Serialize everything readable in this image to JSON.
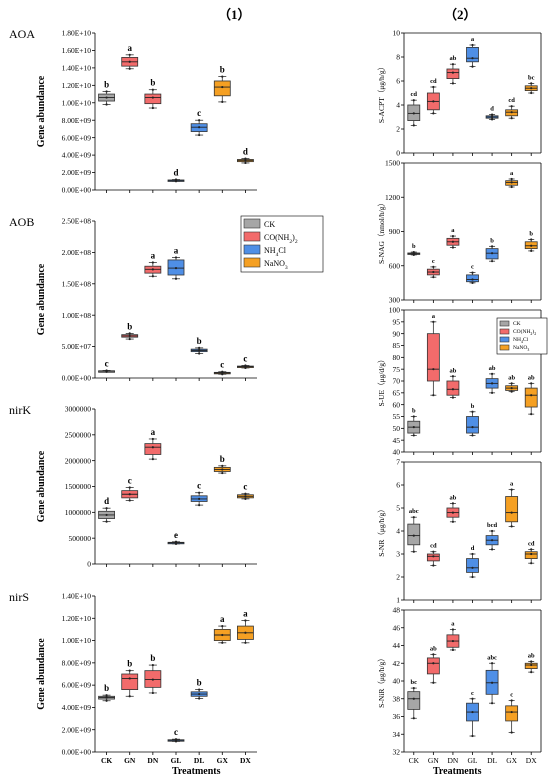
{
  "panel_titles": [
    "（1）",
    "（2）"
  ],
  "xlabel": "Treatments",
  "categories": [
    "CK",
    "GN",
    "DN",
    "GL",
    "DL",
    "GX",
    "DX"
  ],
  "colors": [
    "#a6a6a6",
    "#f26b6b",
    "#4f8fe6",
    "#f5a023"
  ],
  "legend": [
    "CK",
    "CO(NH2)2",
    "NH4Cl",
    "NaNO3"
  ],
  "chart_data": [
    {
      "type": "box",
      "gene": "AOA",
      "ylabel": "Gene abundance",
      "yticks": [
        "0.00E+00",
        "2.00E+09",
        "4.00E+09",
        "6.00E+09",
        "8.00E+09",
        "1.00E+10",
        "1.20E+10",
        "1.40E+10",
        "1.60E+10",
        "1.80E+10"
      ],
      "ylim": [
        0,
        18000000000
      ],
      "boxes": [
        {
          "cat": "CK",
          "min": 9800000000.0,
          "q1": 10200000000.0,
          "median": 10600000000.0,
          "q3": 11000000000.0,
          "max": 11300000000.0,
          "letter": "b"
        },
        {
          "cat": "GN",
          "min": 13900000000.0,
          "q1": 14200000000.0,
          "median": 14700000000.0,
          "q3": 15200000000.0,
          "max": 15500000000.0,
          "letter": "a"
        },
        {
          "cat": "DN",
          "min": 9400000000.0,
          "q1": 9900000000.0,
          "median": 10600000000.0,
          "q3": 11000000000.0,
          "max": 11500000000.0,
          "letter": "b"
        },
        {
          "cat": "GL",
          "min": 1000000000.0,
          "q1": 1050000000.0,
          "median": 1100000000.0,
          "q3": 1150000000.0,
          "max": 1200000000.0,
          "letter": "d"
        },
        {
          "cat": "DL",
          "min": 6300000000.0,
          "q1": 6700000000.0,
          "median": 7200000000.0,
          "q3": 7600000000.0,
          "max": 8000000000.0,
          "letter": "c"
        },
        {
          "cat": "GX",
          "min": 10100000000.0,
          "q1": 10800000000.0,
          "median": 11800000000.0,
          "q3": 12500000000.0,
          "max": 13000000000.0,
          "letter": "b"
        },
        {
          "cat": "DX",
          "min": 3100000000.0,
          "q1": 3250000000.0,
          "median": 3400000000.0,
          "q3": 3500000000.0,
          "max": 3600000000.0,
          "letter": "d"
        }
      ]
    },
    {
      "type": "box",
      "gene": "AOB",
      "ylabel": "Gene abundance",
      "yticks": [
        "0.00E+00",
        "5.00E+07",
        "1.00E+08",
        "1.50E+08",
        "2.00E+08",
        "2.50E+08"
      ],
      "ylim": [
        0,
        250000000
      ],
      "boxes": [
        {
          "cat": "CK",
          "min": 10000000.0,
          "q1": 10500000.0,
          "median": 11000000.0,
          "q3": 11500000.0,
          "max": 12000000.0,
          "letter": "c"
        },
        {
          "cat": "GN",
          "min": 62000000.0,
          "q1": 65000000.0,
          "median": 67000000.0,
          "q3": 69000000.0,
          "max": 71000000.0,
          "letter": "b"
        },
        {
          "cat": "DN",
          "min": 162000000.0,
          "q1": 167000000.0,
          "median": 173000000.0,
          "q3": 178000000.0,
          "max": 184000000.0,
          "letter": "a"
        },
        {
          "cat": "GL",
          "min": 158000000.0,
          "q1": 164000000.0,
          "median": 175000000.0,
          "q3": 188000000.0,
          "max": 192000000.0,
          "letter": "a"
        },
        {
          "cat": "DL",
          "min": 39000000.0,
          "q1": 42000000.0,
          "median": 44000000.0,
          "q3": 46000000.0,
          "max": 48000000.0,
          "letter": "b"
        },
        {
          "cat": "GX",
          "min": 6000000.0,
          "q1": 7000000.0,
          "median": 8000000.0,
          "q3": 9000000.0,
          "max": 10000000.0,
          "letter": "c"
        },
        {
          "cat": "DX",
          "min": 16000000.0,
          "q1": 17000000.0,
          "median": 18000000.0,
          "q3": 19000000.0,
          "max": 20000000.0,
          "letter": "c"
        }
      ]
    },
    {
      "type": "box",
      "gene": "nirK",
      "ylabel": "Gene abundance",
      "yticks": [
        "0",
        "500000",
        "1000000",
        "1500000",
        "2000000",
        "2500000",
        "3000000"
      ],
      "ylim": [
        0,
        3000000
      ],
      "boxes": [
        {
          "cat": "CK",
          "min": 820000,
          "q1": 880000,
          "median": 950000,
          "q3": 1020000,
          "max": 1080000,
          "letter": "d"
        },
        {
          "cat": "GN",
          "min": 1230000,
          "q1": 1280000,
          "median": 1350000,
          "q3": 1420000,
          "max": 1480000,
          "letter": "c"
        },
        {
          "cat": "DN",
          "min": 2030000,
          "q1": 2120000,
          "median": 2260000,
          "q3": 2330000,
          "max": 2420000,
          "letter": "a"
        },
        {
          "cat": "GL",
          "min": 390000,
          "q1": 400000,
          "median": 410000,
          "q3": 420000,
          "max": 430000,
          "letter": "e"
        },
        {
          "cat": "DL",
          "min": 1140000,
          "q1": 1210000,
          "median": 1260000,
          "q3": 1320000,
          "max": 1380000,
          "letter": "c"
        },
        {
          "cat": "GX",
          "min": 1760000,
          "q1": 1790000,
          "median": 1830000,
          "q3": 1870000,
          "max": 1900000,
          "letter": "b"
        },
        {
          "cat": "DX",
          "min": 1260000,
          "q1": 1280000,
          "median": 1310000,
          "q3": 1340000,
          "max": 1360000,
          "letter": "c"
        }
      ]
    },
    {
      "type": "box",
      "gene": "nirS",
      "ylabel": "Gene abundance",
      "yticks": [
        "0.00E+00",
        "2.00E+09",
        "4.00E+09",
        "6.00E+09",
        "8.00E+09",
        "1.00E+10",
        "1.20E+10",
        "1.40E+10"
      ],
      "ylim": [
        0,
        14000000000
      ],
      "boxes": [
        {
          "cat": "CK",
          "min": 4600000000.0,
          "q1": 4750000000.0,
          "median": 4900000000.0,
          "q3": 5000000000.0,
          "max": 5100000000.0,
          "letter": "b"
        },
        {
          "cat": "GN",
          "min": 5000000000.0,
          "q1": 5600000000.0,
          "median": 6600000000.0,
          "q3": 7000000000.0,
          "max": 7300000000.0,
          "letter": "b"
        },
        {
          "cat": "DN",
          "min": 5300000000.0,
          "q1": 5800000000.0,
          "median": 6500000000.0,
          "q3": 7300000000.0,
          "max": 7800000000.0,
          "letter": "b"
        },
        {
          "cat": "GL",
          "min": 950000000.0,
          "q1": 1000000000.0,
          "median": 1050000000.0,
          "q3": 1100000000.0,
          "max": 1150000000.0,
          "letter": "c"
        },
        {
          "cat": "DL",
          "min": 4800000000.0,
          "q1": 5000000000.0,
          "median": 5200000000.0,
          "q3": 5400000000.0,
          "max": 5600000000.0,
          "letter": "b"
        },
        {
          "cat": "GX",
          "min": 9800000000.0,
          "q1": 10000000000.0,
          "median": 10500000000.0,
          "q3": 11000000000.0,
          "max": 11300000000.0,
          "letter": "a"
        },
        {
          "cat": "DX",
          "min": 9800000000.0,
          "q1": 10100000000.0,
          "median": 10700000000.0,
          "q3": 11300000000.0,
          "max": 11800000000.0,
          "letter": "a"
        }
      ]
    },
    {
      "type": "box",
      "ylabel": "S-ACPT（μg/h/g）",
      "yticks": [
        "0",
        "2",
        "4",
        "6",
        "8",
        "10"
      ],
      "ylim": [
        0,
        10
      ],
      "boxes": [
        {
          "cat": "CK",
          "min": 2.3,
          "q1": 2.7,
          "median": 3.3,
          "q3": 4.0,
          "max": 4.4,
          "letter": "cd"
        },
        {
          "cat": "GN",
          "min": 3.3,
          "q1": 3.6,
          "median": 4.3,
          "q3": 5.0,
          "max": 5.5,
          "letter": "cd"
        },
        {
          "cat": "DN",
          "min": 5.8,
          "q1": 6.2,
          "median": 6.7,
          "q3": 7.0,
          "max": 7.4,
          "letter": "ab"
        },
        {
          "cat": "GL",
          "min": 7.2,
          "q1": 7.6,
          "median": 7.9,
          "q3": 8.8,
          "max": 9.0,
          "letter": "a"
        },
        {
          "cat": "DL",
          "min": 2.8,
          "q1": 2.9,
          "median": 3.0,
          "q3": 3.1,
          "max": 3.2,
          "letter": "d"
        },
        {
          "cat": "GX",
          "min": 2.9,
          "q1": 3.1,
          "median": 3.4,
          "q3": 3.6,
          "max": 3.9,
          "letter": "cd"
        },
        {
          "cat": "DX",
          "min": 5.0,
          "q1": 5.2,
          "median": 5.4,
          "q3": 5.6,
          "max": 5.8,
          "letter": "bc"
        }
      ]
    },
    {
      "type": "box",
      "ylabel": "S-NAG（nmol/h/g）",
      "yticks": [
        "300",
        "600",
        "900",
        "1200",
        "1500"
      ],
      "ylim": [
        300,
        1500
      ],
      "boxes": [
        {
          "cat": "CK",
          "min": 695,
          "q1": 700,
          "median": 705,
          "q3": 712,
          "max": 720,
          "letter": "b"
        },
        {
          "cat": "GN",
          "min": 500,
          "q1": 520,
          "median": 545,
          "q3": 570,
          "max": 590,
          "letter": "c"
        },
        {
          "cat": "DN",
          "min": 760,
          "q1": 780,
          "median": 810,
          "q3": 840,
          "max": 860,
          "letter": "a"
        },
        {
          "cat": "GL",
          "min": 450,
          "q1": 460,
          "median": 480,
          "q3": 520,
          "max": 540,
          "letter": "c"
        },
        {
          "cat": "DL",
          "min": 640,
          "q1": 660,
          "median": 710,
          "q3": 750,
          "max": 770,
          "letter": "b"
        },
        {
          "cat": "GX",
          "min": 1290,
          "q1": 1305,
          "median": 1330,
          "q3": 1345,
          "max": 1360,
          "letter": "a"
        },
        {
          "cat": "DX",
          "min": 730,
          "q1": 750,
          "median": 775,
          "q3": 810,
          "max": 830,
          "letter": "b"
        }
      ]
    },
    {
      "type": "box",
      "ylabel": "S-UE（μg/d/g）",
      "yticks": [
        "40",
        "45",
        "50",
        "55",
        "60",
        "65",
        "70",
        "75",
        "80",
        "85",
        "90",
        "95",
        "100"
      ],
      "ylim": [
        40,
        100
      ],
      "boxes": [
        {
          "cat": "CK",
          "min": 47,
          "q1": 48,
          "median": 50.5,
          "q3": 53,
          "max": 55,
          "letter": "b"
        },
        {
          "cat": "GN",
          "min": 64,
          "q1": 70,
          "median": 75,
          "q3": 90,
          "max": 95,
          "letter": "a"
        },
        {
          "cat": "DN",
          "min": 63,
          "q1": 64,
          "median": 66.5,
          "q3": 70,
          "max": 72,
          "letter": "ab"
        },
        {
          "cat": "GL",
          "min": 47,
          "q1": 48,
          "median": 50.5,
          "q3": 55,
          "max": 57,
          "letter": "b"
        },
        {
          "cat": "DL",
          "min": 65,
          "q1": 67,
          "median": 69,
          "q3": 71,
          "max": 73,
          "letter": "ab"
        },
        {
          "cat": "GX",
          "min": 65.5,
          "q1": 66,
          "median": 67,
          "q3": 68,
          "max": 69,
          "letter": "ab"
        },
        {
          "cat": "DX",
          "min": 56,
          "q1": 59,
          "median": 64,
          "q3": 67,
          "max": 69,
          "letter": "ab"
        }
      ]
    },
    {
      "type": "box",
      "ylabel": "S-NR（μg/h/g）",
      "yticks": [
        "1",
        "2",
        "3",
        "4",
        "5",
        "6",
        "7"
      ],
      "ylim": [
        1,
        7
      ],
      "boxes": [
        {
          "cat": "CK",
          "min": 3.1,
          "q1": 3.4,
          "median": 3.8,
          "q3": 4.3,
          "max": 4.6,
          "letter": "abc"
        },
        {
          "cat": "GN",
          "min": 2.5,
          "q1": 2.7,
          "median": 2.9,
          "q3": 3.0,
          "max": 3.1,
          "letter": "cd"
        },
        {
          "cat": "DN",
          "min": 4.4,
          "q1": 4.6,
          "median": 4.8,
          "q3": 5.0,
          "max": 5.2,
          "letter": "ab"
        },
        {
          "cat": "GL",
          "min": 2.0,
          "q1": 2.2,
          "median": 2.4,
          "q3": 2.8,
          "max": 3.0,
          "letter": "d"
        },
        {
          "cat": "DL",
          "min": 3.2,
          "q1": 3.4,
          "median": 3.6,
          "q3": 3.8,
          "max": 4.0,
          "letter": "bcd"
        },
        {
          "cat": "GX",
          "min": 4.2,
          "q1": 4.4,
          "median": 4.8,
          "q3": 5.5,
          "max": 5.8,
          "letter": "a"
        },
        {
          "cat": "DX",
          "min": 2.6,
          "q1": 2.8,
          "median": 3.0,
          "q3": 3.1,
          "max": 3.2,
          "letter": "cd"
        }
      ]
    },
    {
      "type": "box",
      "ylabel": "S-NiR（μg/h/g）",
      "yticks": [
        "32",
        "34",
        "36",
        "38",
        "40",
        "42",
        "44",
        "46",
        "48"
      ],
      "ylim": [
        32,
        48
      ],
      "boxes": [
        {
          "cat": "CK",
          "min": 35.8,
          "q1": 36.8,
          "median": 38,
          "q3": 38.8,
          "max": 39.2,
          "letter": "bc"
        },
        {
          "cat": "GN",
          "min": 39.8,
          "q1": 40.8,
          "median": 42,
          "q3": 42.6,
          "max": 43.0,
          "letter": "ab"
        },
        {
          "cat": "DN",
          "min": 43.5,
          "q1": 43.8,
          "median": 44.5,
          "q3": 45.2,
          "max": 45.8,
          "letter": "a"
        },
        {
          "cat": "GL",
          "min": 33.8,
          "q1": 35.5,
          "median": 36.5,
          "q3": 37.5,
          "max": 38.0,
          "letter": "c"
        },
        {
          "cat": "DL",
          "min": 37.5,
          "q1": 38.5,
          "median": 39.8,
          "q3": 41.2,
          "max": 42.0,
          "letter": "abc"
        },
        {
          "cat": "GX",
          "min": 34.2,
          "q1": 35.5,
          "median": 36.5,
          "q3": 37.2,
          "max": 37.8,
          "letter": "c"
        },
        {
          "cat": "DX",
          "min": 41.0,
          "q1": 41.4,
          "median": 41.8,
          "q3": 42.0,
          "max": 42.2,
          "letter": "ab"
        }
      ]
    }
  ]
}
